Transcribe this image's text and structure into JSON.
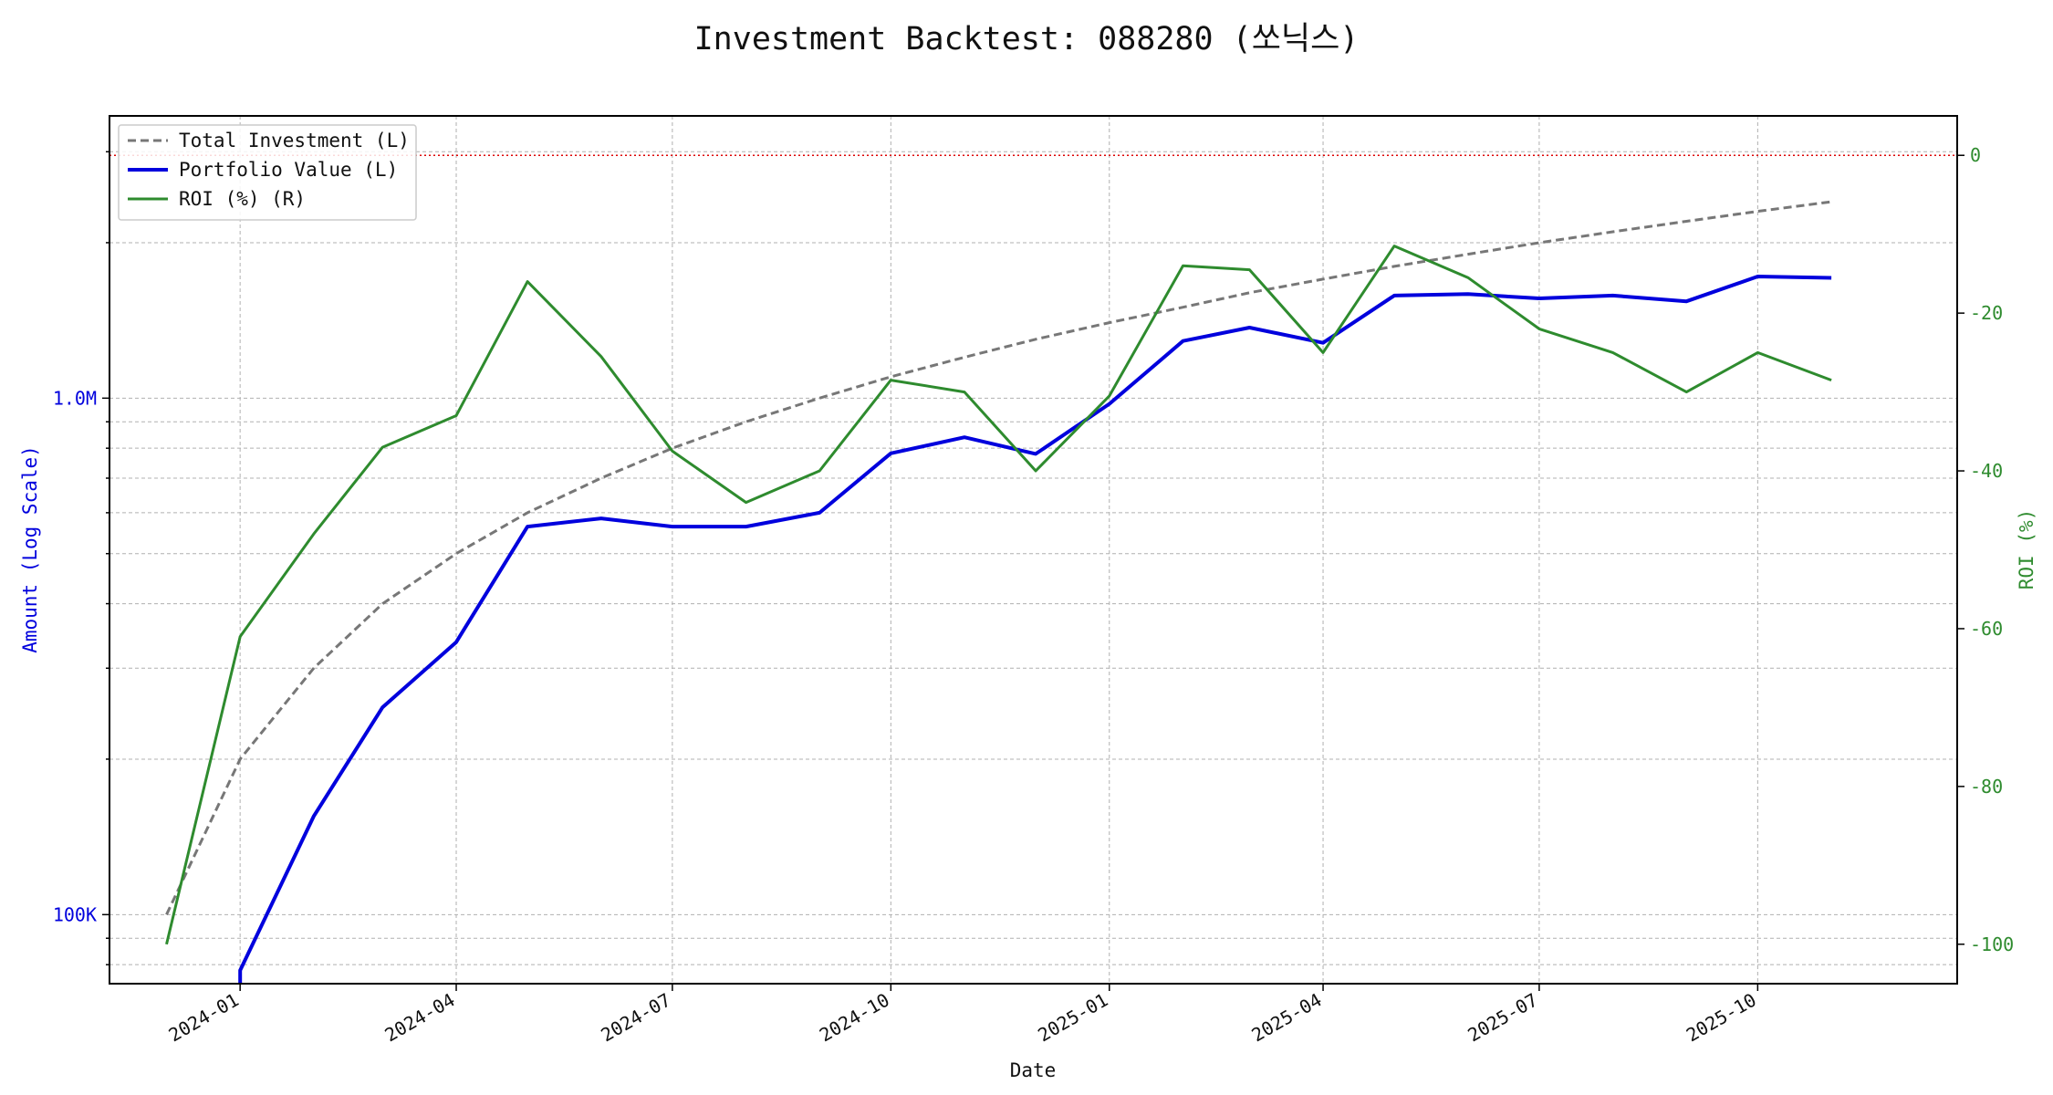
{
  "chart_data": {
    "type": "line",
    "title": "Investment Backtest: 088280 (쏘닉스)",
    "xlabel": "Date",
    "ylabel_left": "Amount (Log Scale)",
    "ylabel_right": "ROI (%)",
    "x_range": [
      "2023-11-07",
      "2025-12-24"
    ],
    "x_ticks": [
      "2024-01",
      "2024-04",
      "2024-07",
      "2024-10",
      "2025-01",
      "2025-04",
      "2025-07",
      "2025-10"
    ],
    "y_left_scale": "log",
    "y_left_range": [
      73500,
      3520000
    ],
    "y_left_ticks": [
      {
        "value": 100000,
        "label": "100K"
      },
      {
        "value": 1000000,
        "label": "1.0M"
      }
    ],
    "y_right_range": [
      -105,
      5
    ],
    "y_right_ticks": [
      0,
      -20,
      -40,
      -60,
      -80,
      -100
    ],
    "grid": true,
    "legend_position": "top-left",
    "colors": {
      "total": "#777777",
      "portfolio": "#0000dd",
      "roi": "#2e8b2e",
      "zero_line": "#dd0000"
    },
    "dates": [
      "2023-12-01",
      "2024-01-01",
      "2024-02-01",
      "2024-03-01",
      "2024-04-01",
      "2024-05-01",
      "2024-06-01",
      "2024-07-01",
      "2024-08-01",
      "2024-09-01",
      "2024-10-01",
      "2024-11-01",
      "2024-12-01",
      "2025-01-01",
      "2025-02-01",
      "2025-03-01",
      "2025-04-01",
      "2025-05-01",
      "2025-06-01",
      "2025-07-01",
      "2025-08-01",
      "2025-09-01",
      "2025-10-01",
      "2025-11-01"
    ],
    "series": [
      {
        "name": "Total Investment (L)",
        "axis": "left",
        "style": "dashed",
        "values": [
          100000,
          200000,
          300000,
          400000,
          500000,
          600000,
          700000,
          800000,
          900000,
          1000000,
          1100000,
          1200000,
          1300000,
          1400000,
          1500000,
          1600000,
          1700000,
          1800000,
          1900000,
          2000000,
          2100000,
          2200000,
          2300000,
          2400000
        ]
      },
      {
        "name": "Portfolio Value (L)",
        "axis": "left",
        "style": "solid-thick",
        "values": [
          null,
          78000,
          155000,
          252000,
          337000,
          564000,
          585000,
          564000,
          564000,
          600000,
          782000,
          840000,
          780000,
          975000,
          1290000,
          1370000,
          1280000,
          1580000,
          1590000,
          1560000,
          1580000,
          1540000,
          1720000,
          1710000
        ]
      },
      {
        "name": "ROI (%) (R)",
        "axis": "right",
        "style": "solid",
        "values": [
          -100,
          -61,
          -48,
          -37,
          -33,
          -16,
          -25.5,
          -37.5,
          -44,
          -40,
          -28.5,
          -30,
          -40,
          -30.5,
          -14,
          -14.5,
          -25,
          -11.5,
          -15.5,
          -22,
          -25,
          -30,
          -25,
          -28.5
        ]
      }
    ]
  }
}
